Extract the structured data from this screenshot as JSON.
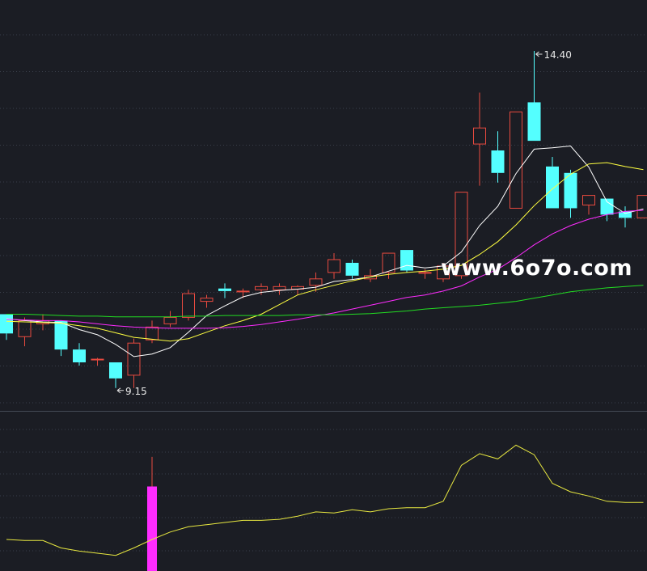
{
  "chart_data": [
    {
      "type": "candlestick",
      "panel": "price",
      "x": [
        "1",
        "2",
        "3",
        "4",
        "5",
        "6",
        "7",
        "8",
        "9",
        "10",
        "11",
        "12",
        "13",
        "14",
        "15",
        "16",
        "17",
        "18",
        "19",
        "20",
        "21",
        "22",
        "23",
        "24",
        "25",
        "26",
        "27",
        "28",
        "29",
        "30",
        "31",
        "32",
        "33",
        "34",
        "35",
        "36"
      ],
      "ohlc": [
        [
          10.3,
          10.3,
          9.9,
          10.0
        ],
        [
          9.95,
          10.25,
          9.8,
          10.2
        ],
        [
          10.15,
          10.3,
          10.05,
          10.2
        ],
        [
          10.2,
          10.2,
          9.65,
          9.75
        ],
        [
          9.75,
          9.85,
          9.5,
          9.55
        ],
        [
          9.6,
          9.62,
          9.5,
          9.6
        ],
        [
          9.55,
          9.55,
          9.15,
          9.3
        ],
        [
          9.35,
          9.92,
          9.15,
          9.85
        ],
        [
          9.9,
          10.2,
          9.85,
          10.1
        ],
        [
          10.15,
          10.35,
          10.1,
          10.25
        ],
        [
          10.25,
          10.68,
          10.2,
          10.62
        ],
        [
          10.5,
          10.6,
          10.4,
          10.55
        ],
        [
          10.7,
          10.78,
          10.55,
          10.66
        ],
        [
          10.66,
          10.7,
          10.55,
          10.66
        ],
        [
          10.68,
          10.78,
          10.6,
          10.73
        ],
        [
          10.68,
          10.78,
          10.6,
          10.73
        ],
        [
          10.69,
          10.75,
          10.6,
          10.73
        ],
        [
          10.75,
          10.95,
          10.65,
          10.85
        ],
        [
          10.95,
          11.25,
          10.85,
          11.15
        ],
        [
          11.1,
          11.15,
          10.85,
          10.9
        ],
        [
          10.85,
          11.0,
          10.8,
          10.9
        ],
        [
          10.95,
          11.25,
          10.85,
          11.25
        ],
        [
          11.3,
          11.3,
          10.95,
          10.98
        ],
        [
          10.95,
          11.0,
          10.85,
          10.95
        ],
        [
          10.85,
          11.1,
          10.8,
          11.05
        ],
        [
          10.9,
          12.2,
          10.85,
          12.2
        ],
        [
          12.95,
          13.75,
          12.3,
          13.2
        ],
        [
          12.85,
          13.15,
          12.35,
          12.5
        ],
        [
          11.95,
          13.45,
          11.95,
          13.45
        ],
        [
          13.6,
          14.4,
          13.0,
          13.0
        ],
        [
          12.6,
          12.75,
          11.95,
          11.95
        ],
        [
          12.5,
          12.55,
          11.8,
          11.95
        ],
        [
          12.0,
          12.15,
          11.85,
          12.15
        ],
        [
          12.1,
          12.1,
          11.75,
          11.85
        ],
        [
          11.9,
          11.98,
          11.65,
          11.8
        ],
        [
          11.8,
          12.15,
          11.8,
          12.15
        ]
      ],
      "up_color": "#e84a3f",
      "down_color": "#54ffff",
      "ma_series": [
        {
          "color": "#ffffff",
          "values": [
            10.23,
            10.2,
            10.18,
            10.17,
            10.06,
            9.98,
            9.83,
            9.64,
            9.68,
            9.78,
            10.02,
            10.28,
            10.43,
            10.57,
            10.64,
            10.67,
            10.69,
            10.72,
            10.81,
            10.84,
            10.88,
            10.97,
            11.06,
            11.02,
            11.05,
            11.27,
            11.68,
            11.98,
            12.49,
            12.87,
            12.89,
            12.92,
            12.59,
            12.05,
            11.87,
            11.94
          ]
        },
        {
          "color": "#ffff40",
          "values": [
            10.19,
            10.18,
            10.17,
            10.16,
            10.12,
            10.08,
            10.01,
            9.94,
            9.91,
            9.88,
            9.92,
            10.02,
            10.12,
            10.2,
            10.3,
            10.45,
            10.6,
            10.68,
            10.75,
            10.82,
            10.88,
            10.92,
            10.95,
            10.97,
            11.0,
            11.06,
            11.23,
            11.43,
            11.69,
            11.99,
            12.25,
            12.48,
            12.64,
            12.66,
            12.6,
            12.55
          ]
        },
        {
          "color": "#ff2cff",
          "values": [
            10.22,
            10.21,
            10.2,
            10.2,
            10.18,
            10.15,
            10.12,
            10.1,
            10.09,
            10.08,
            10.08,
            10.08,
            10.09,
            10.11,
            10.14,
            10.18,
            10.22,
            10.27,
            10.32,
            10.38,
            10.44,
            10.5,
            10.56,
            10.6,
            10.66,
            10.74,
            10.88,
            11.0,
            11.18,
            11.38,
            11.55,
            11.68,
            11.78,
            11.85,
            11.9,
            11.92
          ]
        },
        {
          "color": "#22dd22",
          "values": [
            10.3,
            10.3,
            10.29,
            10.28,
            10.27,
            10.27,
            10.26,
            10.26,
            10.26,
            10.26,
            10.27,
            10.27,
            10.28,
            10.28,
            10.28,
            10.28,
            10.29,
            10.29,
            10.29,
            10.3,
            10.31,
            10.33,
            10.35,
            10.38,
            10.4,
            10.42,
            10.44,
            10.47,
            10.5,
            10.55,
            10.6,
            10.65,
            10.68,
            10.71,
            10.73,
            10.75
          ]
        }
      ],
      "annotations": [
        {
          "label": "14.40",
          "x": "30",
          "y": 14.4
        },
        {
          "label": "9.15",
          "x": "7",
          "y": 9.15
        }
      ],
      "grid": true
    },
    {
      "type": "line+bar",
      "panel": "indicator",
      "x": [
        "1",
        "2",
        "3",
        "4",
        "5",
        "6",
        "7",
        "8",
        "9",
        "10",
        "11",
        "12",
        "13",
        "14",
        "15",
        "16",
        "17",
        "18",
        "19",
        "20",
        "21",
        "22",
        "23",
        "24",
        "25",
        "26",
        "27",
        "28",
        "29",
        "30",
        "31",
        "32",
        "33",
        "34",
        "35",
        "36"
      ],
      "line": {
        "color": "#e8e840",
        "values": [
          0.5,
          0.49,
          0.49,
          0.42,
          0.39,
          0.37,
          0.35,
          0.42,
          0.5,
          0.57,
          0.62,
          0.64,
          0.66,
          0.68,
          0.68,
          0.69,
          0.72,
          0.76,
          0.75,
          0.78,
          0.76,
          0.79,
          0.8,
          0.8,
          0.86,
          1.2,
          1.31,
          1.26,
          1.39,
          1.3,
          1.03,
          0.95,
          0.91,
          0.86,
          0.85,
          0.85
        ]
      },
      "bars": [
        {
          "x": "9",
          "value": 1.0,
          "wick": 1.28,
          "color": "#ff2cff"
        }
      ],
      "grid": true
    }
  ],
  "watermark": "www.6o7o.com"
}
